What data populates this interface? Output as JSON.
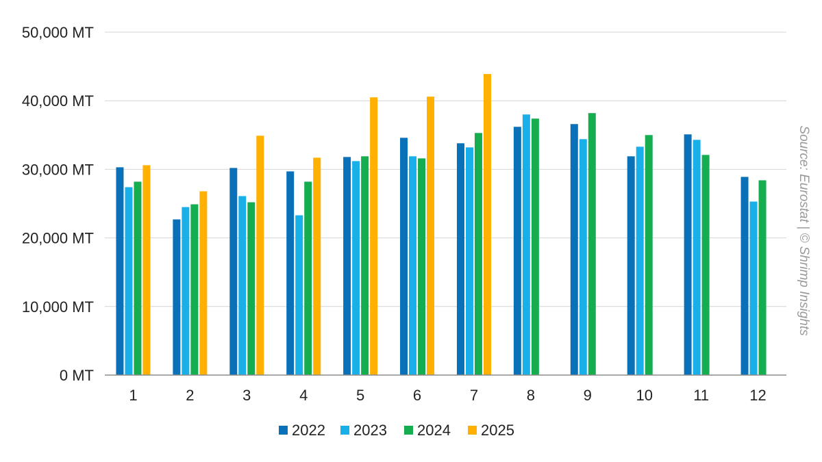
{
  "chart_data": {
    "type": "bar",
    "categories": [
      "1",
      "2",
      "3",
      "4",
      "5",
      "6",
      "7",
      "8",
      "9",
      "10",
      "11",
      "12"
    ],
    "series": [
      {
        "name": "2022",
        "color": "#0a70b8",
        "values": [
          30300,
          22700,
          30200,
          29700,
          31800,
          34600,
          33800,
          36200,
          36600,
          31900,
          35100,
          28900
        ]
      },
      {
        "name": "2023",
        "color": "#19b0ea",
        "values": [
          27400,
          24500,
          26100,
          23300,
          31200,
          31900,
          33200,
          38000,
          34400,
          33300,
          34300,
          25300
        ]
      },
      {
        "name": "2024",
        "color": "#16ad51",
        "values": [
          28200,
          24900,
          25200,
          28200,
          31900,
          31600,
          35300,
          37400,
          38200,
          35000,
          32100,
          28400
        ]
      },
      {
        "name": "2025",
        "color": "#ffb000",
        "values": [
          30600,
          26800,
          34900,
          31700,
          40500,
          40600,
          43900,
          null,
          null,
          null,
          null,
          null
        ]
      }
    ],
    "yticks": [
      "0 MT",
      "10,000 MT",
      "20,000 MT",
      "30,000 MT",
      "40,000 MT",
      "50,000 MT"
    ],
    "ylim": [
      0,
      50000
    ],
    "grid": true,
    "legend_position": "bottom",
    "annotation": "Source: Eurostat | © Shrimp Insights",
    "title": "",
    "xlabel": "",
    "ylabel": ""
  }
}
